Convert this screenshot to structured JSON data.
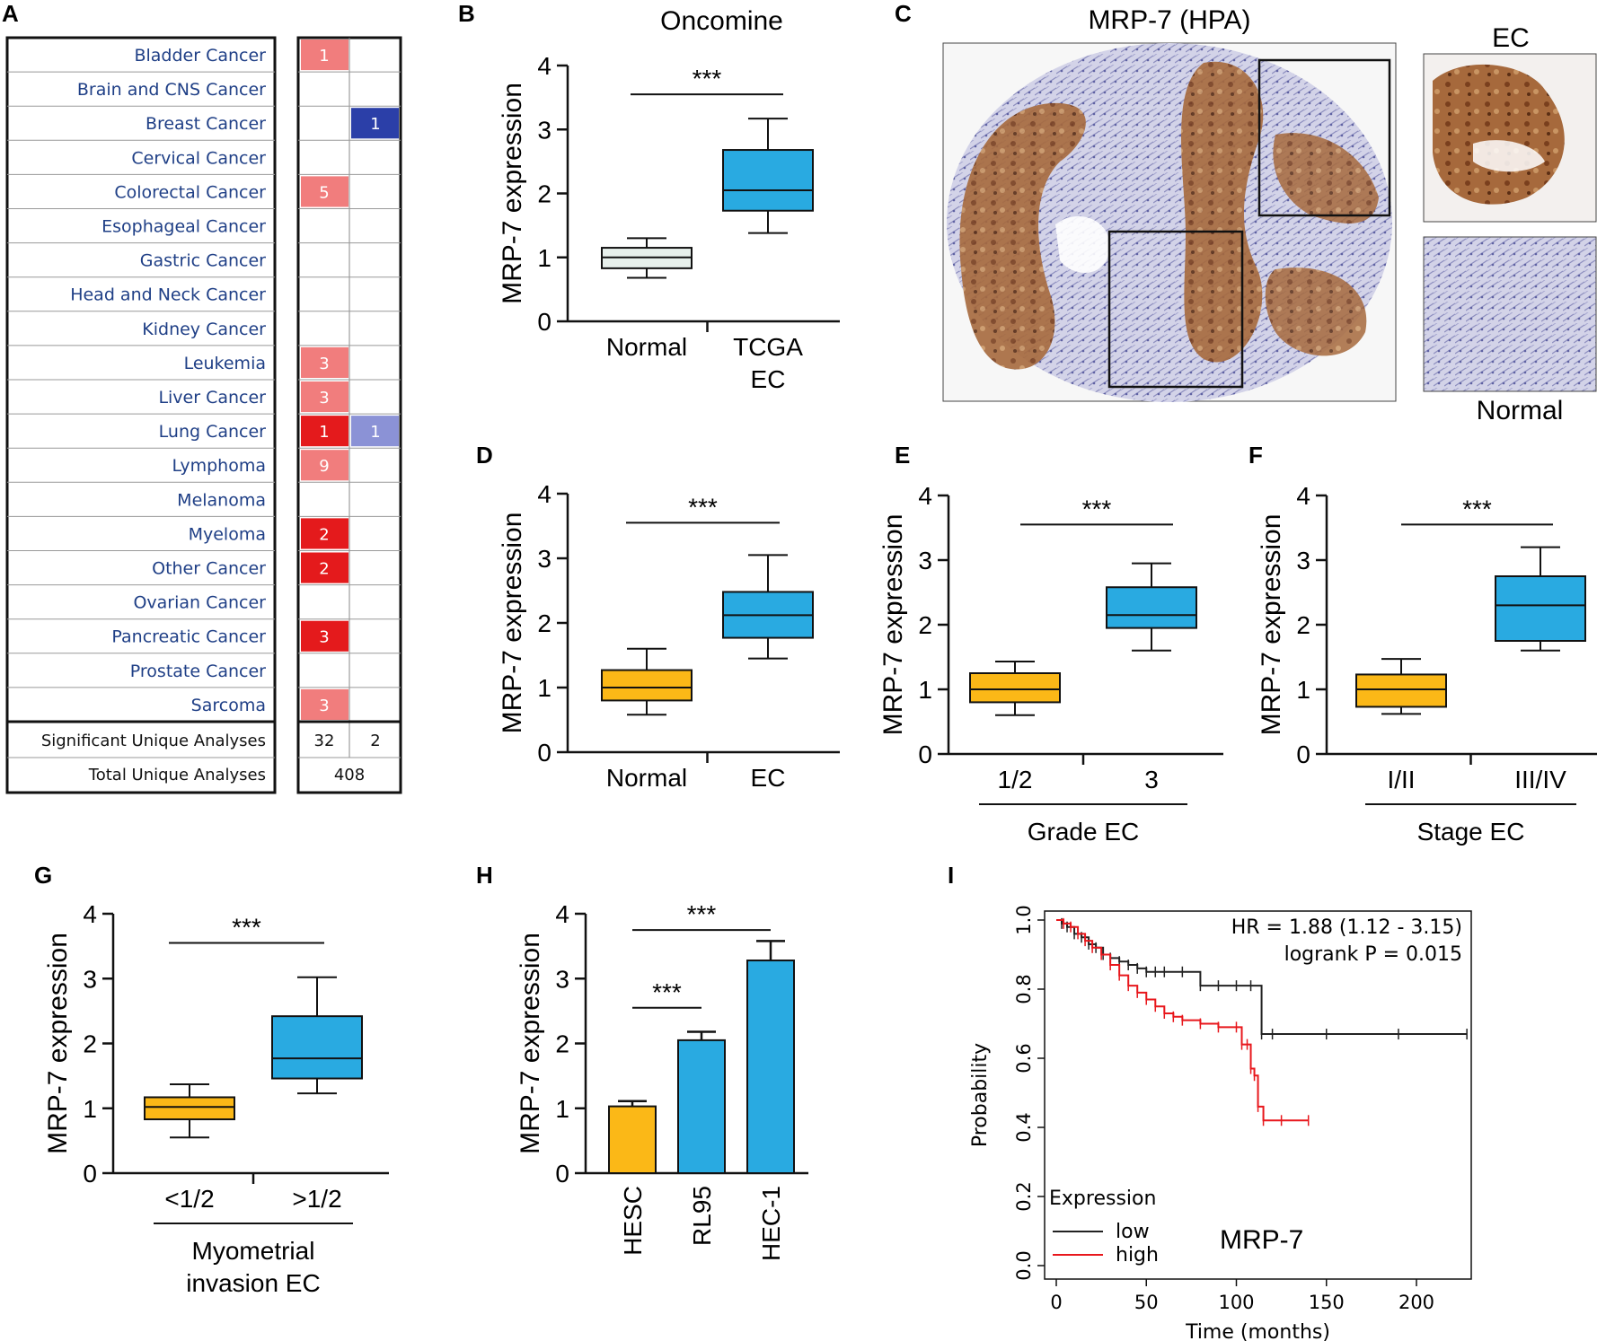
{
  "colors": {
    "blue": "#29aae1",
    "orange": "#fbb817",
    "normal_box": "#e7f0ec",
    "oncomine_red_dark": "#e41a1c",
    "oncomine_red_light": "#f17d7d",
    "oncomine_blue_dark": "#2b3fa8",
    "oncomine_blue_light": "#8b92d6",
    "km_high": "#e8171c",
    "km_low": "#222222"
  },
  "panel_labels": [
    "A",
    "B",
    "C",
    "D",
    "E",
    "F",
    "G",
    "H",
    "I"
  ],
  "panelA": {
    "cancers": [
      {
        "name": "Bladder Cancer",
        "up": "1",
        "up_shade": "light",
        "down": ""
      },
      {
        "name": "Brain and CNS Cancer",
        "up": "",
        "up_shade": "",
        "down": ""
      },
      {
        "name": "Breast Cancer",
        "up": "",
        "up_shade": "",
        "down": "1",
        "down_shade": "dark"
      },
      {
        "name": "Cervical Cancer",
        "up": "",
        "up_shade": "",
        "down": ""
      },
      {
        "name": "Colorectal Cancer",
        "up": "5",
        "up_shade": "light",
        "down": ""
      },
      {
        "name": "Esophageal Cancer",
        "up": "",
        "up_shade": "",
        "down": ""
      },
      {
        "name": "Gastric Cancer",
        "up": "",
        "up_shade": "",
        "down": ""
      },
      {
        "name": "Head and Neck Cancer",
        "up": "",
        "up_shade": "",
        "down": ""
      },
      {
        "name": "Kidney Cancer",
        "up": "",
        "up_shade": "",
        "down": ""
      },
      {
        "name": "Leukemia",
        "up": "3",
        "up_shade": "light",
        "down": ""
      },
      {
        "name": "Liver Cancer",
        "up": "3",
        "up_shade": "light",
        "down": ""
      },
      {
        "name": "Lung Cancer",
        "up": "1",
        "up_shade": "dark",
        "down": "1",
        "down_shade": "light"
      },
      {
        "name": "Lymphoma",
        "up": "9",
        "up_shade": "light",
        "down": ""
      },
      {
        "name": "Melanoma",
        "up": "",
        "up_shade": "",
        "down": ""
      },
      {
        "name": "Myeloma",
        "up": "2",
        "up_shade": "dark",
        "down": ""
      },
      {
        "name": "Other Cancer",
        "up": "2",
        "up_shade": "dark",
        "down": ""
      },
      {
        "name": "Ovarian Cancer",
        "up": "",
        "up_shade": "",
        "down": ""
      },
      {
        "name": "Pancreatic Cancer",
        "up": "3",
        "up_shade": "dark",
        "down": ""
      },
      {
        "name": "Prostate Cancer",
        "up": "",
        "up_shade": "",
        "down": ""
      },
      {
        "name": "Sarcoma",
        "up": "3",
        "up_shade": "light",
        "down": ""
      }
    ],
    "significant_label": "Significant Unique Analyses",
    "significant_up": "32",
    "significant_down": "2",
    "total_label": "Total Unique Analyses",
    "total_value": "408"
  },
  "panelC": {
    "title": "MRP-7 (HPA)",
    "label_ec": "EC",
    "label_normal": "Normal"
  },
  "chart_data": [
    {
      "panel": "B",
      "type": "box",
      "title": "Oncomine",
      "ylabel": "MRP-7 expression",
      "ylim": [
        0,
        4
      ],
      "yticks": [
        0,
        1,
        2,
        3,
        4
      ],
      "categories": [
        "Normal",
        "TCGA\nEC"
      ],
      "series": [
        {
          "name": "Normal",
          "color": "normal",
          "min": 0.68,
          "q1": 0.83,
          "median": 1.0,
          "q3": 1.15,
          "max": 1.3
        },
        {
          "name": "TCGA EC",
          "color": "blue",
          "min": 1.38,
          "q1": 1.73,
          "median": 2.05,
          "q3": 2.68,
          "max": 3.17
        }
      ],
      "significance": [
        {
          "from": 0,
          "to": 1,
          "label": "***",
          "y": 3.55
        }
      ]
    },
    {
      "panel": "D",
      "type": "box",
      "title": "",
      "ylabel": "MRP-7 expression",
      "ylim": [
        0,
        4
      ],
      "yticks": [
        0,
        1,
        2,
        3,
        4
      ],
      "categories": [
        "Normal",
        "EC"
      ],
      "series": [
        {
          "name": "Normal",
          "color": "orange",
          "min": 0.58,
          "q1": 0.8,
          "median": 1.0,
          "q3": 1.27,
          "max": 1.6
        },
        {
          "name": "EC",
          "color": "blue",
          "min": 1.45,
          "q1": 1.77,
          "median": 2.12,
          "q3": 2.48,
          "max": 3.05
        }
      ],
      "significance": [
        {
          "from": 0,
          "to": 1,
          "label": "***",
          "y": 3.55
        }
      ]
    },
    {
      "panel": "E",
      "type": "box",
      "title": "",
      "ylabel": "MRP-7 expression",
      "ylim": [
        0,
        4
      ],
      "yticks": [
        0,
        1,
        2,
        3,
        4
      ],
      "categories": [
        "1/2",
        "3"
      ],
      "group_label": "Grade EC",
      "series": [
        {
          "name": "1/2",
          "color": "orange",
          "min": 0.6,
          "q1": 0.8,
          "median": 1.0,
          "q3": 1.25,
          "max": 1.43
        },
        {
          "name": "3",
          "color": "blue",
          "min": 1.6,
          "q1": 1.95,
          "median": 2.15,
          "q3": 2.58,
          "max": 2.95
        }
      ],
      "significance": [
        {
          "from": 0,
          "to": 1,
          "label": "***",
          "y": 3.55
        }
      ]
    },
    {
      "panel": "F",
      "type": "box",
      "title": "",
      "ylabel": "MRP-7 expression",
      "ylim": [
        0,
        4
      ],
      "yticks": [
        0,
        1,
        2,
        3,
        4
      ],
      "categories": [
        "I/II",
        "III/IV"
      ],
      "group_label": "Stage EC",
      "series": [
        {
          "name": "I/II",
          "color": "orange",
          "min": 0.62,
          "q1": 0.73,
          "median": 1.0,
          "q3": 1.23,
          "max": 1.47
        },
        {
          "name": "III/IV",
          "color": "blue",
          "min": 1.6,
          "q1": 1.75,
          "median": 2.3,
          "q3": 2.75,
          "max": 3.2
        }
      ],
      "significance": [
        {
          "from": 0,
          "to": 1,
          "label": "***",
          "y": 3.55
        }
      ]
    },
    {
      "panel": "G",
      "type": "box",
      "title": "",
      "ylabel": "MRP-7 expression",
      "ylim": [
        0,
        4
      ],
      "yticks": [
        0,
        1,
        2,
        3,
        4
      ],
      "categories": [
        "<1/2",
        ">1/2"
      ],
      "group_label": "Myometrial\ninvasion EC",
      "series": [
        {
          "name": "<1/2",
          "color": "orange",
          "min": 0.55,
          "q1": 0.83,
          "median": 1.02,
          "q3": 1.17,
          "max": 1.37
        },
        {
          "name": ">1/2",
          "color": "blue",
          "min": 1.23,
          "q1": 1.46,
          "median": 1.77,
          "q3": 2.42,
          "max": 3.02
        }
      ],
      "significance": [
        {
          "from": 0,
          "to": 1,
          "label": "***",
          "y": 3.55
        }
      ]
    },
    {
      "panel": "H",
      "type": "bar",
      "title": "",
      "ylabel": "MRP-7 expression",
      "ylim": [
        0,
        4
      ],
      "yticks": [
        0,
        1,
        2,
        3,
        4
      ],
      "categories": [
        "HESC",
        "RL95",
        "HEC-1"
      ],
      "values": [
        1.03,
        2.05,
        3.28
      ],
      "errors": [
        0.08,
        0.13,
        0.3
      ],
      "colors": [
        "orange",
        "blue",
        "blue"
      ],
      "significance": [
        {
          "from": 0,
          "to": 1,
          "label": "***",
          "y": 2.55
        },
        {
          "from": 0,
          "to": 2,
          "label": "***",
          "y": 3.75
        }
      ]
    },
    {
      "panel": "I",
      "type": "line",
      "title": "MRP-7",
      "xlabel": "Time (months)",
      "ylabel": "Probability",
      "xlim": [
        0,
        230
      ],
      "ylim": [
        0,
        1.0
      ],
      "xticks": [
        0,
        50,
        100,
        150,
        200
      ],
      "yticks": [
        "0.0",
        "0.2",
        "0.4",
        "0.6",
        "0.8",
        "1.0"
      ],
      "annotation_hr": "HR = 1.88 (1.12 - 3.15)",
      "annotation_p": "logrank P = 0.015",
      "legend_title": "Expression",
      "series": [
        {
          "name": "low",
          "color": "low",
          "x": [
            0,
            3,
            6,
            10,
            14,
            18,
            22,
            26,
            30,
            35,
            40,
            45,
            50,
            55,
            60,
            70,
            80,
            90,
            100,
            108,
            114,
            120,
            150,
            190,
            228
          ],
          "y": [
            1.0,
            0.99,
            0.98,
            0.96,
            0.95,
            0.93,
            0.92,
            0.9,
            0.89,
            0.88,
            0.87,
            0.86,
            0.85,
            0.85,
            0.85,
            0.85,
            0.81,
            0.81,
            0.81,
            0.81,
            0.67,
            0.67,
            0.67,
            0.67,
            0.67
          ]
        },
        {
          "name": "high",
          "color": "high",
          "x": [
            0,
            4,
            8,
            12,
            16,
            20,
            25,
            30,
            35,
            40,
            45,
            50,
            55,
            60,
            65,
            70,
            80,
            90,
            100,
            103,
            106,
            108,
            110,
            112,
            115,
            125,
            140
          ],
          "y": [
            1.0,
            0.99,
            0.98,
            0.96,
            0.94,
            0.92,
            0.9,
            0.87,
            0.84,
            0.81,
            0.79,
            0.77,
            0.75,
            0.73,
            0.72,
            0.71,
            0.7,
            0.69,
            0.69,
            0.64,
            0.64,
            0.57,
            0.55,
            0.46,
            0.42,
            0.42,
            0.42
          ]
        }
      ]
    }
  ]
}
